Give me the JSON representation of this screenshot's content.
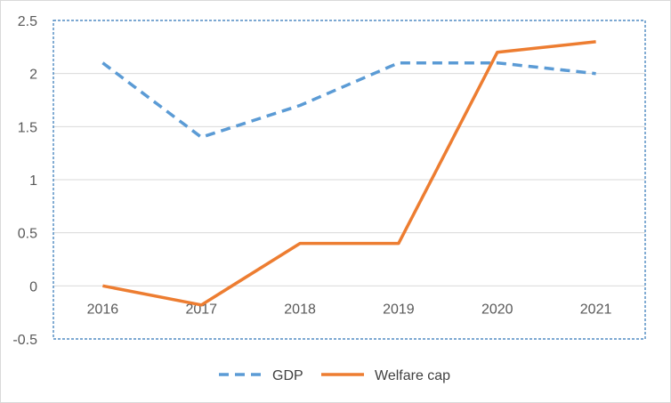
{
  "chart_data": {
    "type": "line",
    "categories": [
      "2016",
      "2017",
      "2018",
      "2019",
      "2020",
      "2021"
    ],
    "series": [
      {
        "name": "GDP",
        "values": [
          2.1,
          1.4,
          1.7,
          2.1,
          2.1,
          2.0
        ],
        "color": "#5b9bd5",
        "style": "dashed"
      },
      {
        "name": "Welfare cap",
        "values": [
          0.0,
          -0.18,
          0.4,
          0.4,
          2.2,
          2.3
        ],
        "color": "#ed7d31",
        "style": "solid"
      }
    ],
    "ylim": [
      -0.5,
      2.5
    ],
    "yticks": [
      "2.5",
      "2",
      "1.5",
      "1",
      "0.5",
      "0",
      "-0.5"
    ],
    "grid": true,
    "legend_position": "bottom",
    "plot_border_color": "#2e75b6"
  }
}
